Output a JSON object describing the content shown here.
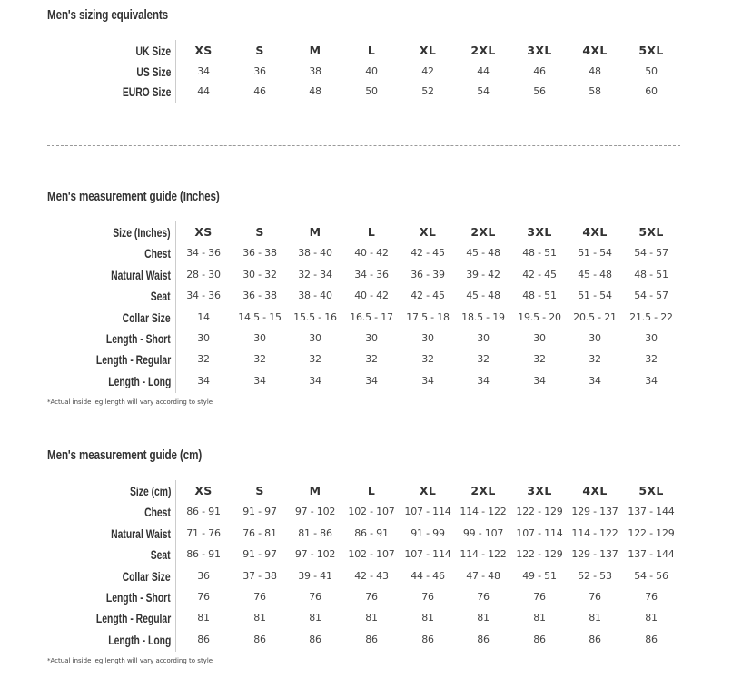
{
  "sizing": {
    "title": "Men's sizing equivalents",
    "rows": [
      {
        "label": "UK Size",
        "header": true,
        "values": [
          "XS",
          "S",
          "M",
          "L",
          "XL",
          "2XL",
          "3XL",
          "4XL",
          "5XL"
        ]
      },
      {
        "label": "US Size",
        "values": [
          "34",
          "36",
          "38",
          "40",
          "42",
          "44",
          "46",
          "48",
          "50"
        ]
      },
      {
        "label": "EURO Size",
        "values": [
          "44",
          "46",
          "48",
          "50",
          "52",
          "54",
          "56",
          "58",
          "60"
        ]
      }
    ]
  },
  "inches": {
    "title": "Men's measurement guide (Inches)",
    "note": "*Actual inside leg length will vary according to style",
    "rows": [
      {
        "label": "Size (Inches)",
        "header": true,
        "values": [
          "XS",
          "S",
          "M",
          "L",
          "XL",
          "2XL",
          "3XL",
          "4XL",
          "5XL"
        ]
      },
      {
        "label": "Chest",
        "values": [
          "34 - 36",
          "36 - 38",
          "38 - 40",
          "40 - 42",
          "42 - 45",
          "45 - 48",
          "48 - 51",
          "51 - 54",
          "54 - 57"
        ]
      },
      {
        "label": "Natural Waist",
        "values": [
          "28 - 30",
          "30 - 32",
          "32 - 34",
          "34 - 36",
          "36 - 39",
          "39 - 42",
          "42 - 45",
          "45 - 48",
          "48 - 51"
        ]
      },
      {
        "label": "Seat",
        "values": [
          "34 - 36",
          "36 - 38",
          "38 - 40",
          "40 - 42",
          "42 - 45",
          "45 - 48",
          "48 - 51",
          "51 - 54",
          "54 - 57"
        ]
      },
      {
        "label": "Collar Size",
        "values": [
          "14",
          "14.5 - 15",
          "15.5 - 16",
          "16.5 - 17",
          "17.5 - 18",
          "18.5 - 19",
          "19.5 - 20",
          "20.5 - 21",
          "21.5 - 22"
        ]
      },
      {
        "label": "Length - Short",
        "values": [
          "30",
          "30",
          "30",
          "30",
          "30",
          "30",
          "30",
          "30",
          "30"
        ]
      },
      {
        "label": "Length - Regular",
        "values": [
          "32",
          "32",
          "32",
          "32",
          "32",
          "32",
          "32",
          "32",
          "32"
        ]
      },
      {
        "label": "Length - Long",
        "values": [
          "34",
          "34",
          "34",
          "34",
          "34",
          "34",
          "34",
          "34",
          "34"
        ]
      }
    ]
  },
  "cm": {
    "title": "Men's measurement guide (cm)",
    "note": "*Actual inside leg length will vary according to style",
    "rows": [
      {
        "label": "Size (cm)",
        "header": true,
        "values": [
          "XS",
          "S",
          "M",
          "L",
          "XL",
          "2XL",
          "3XL",
          "4XL",
          "5XL"
        ]
      },
      {
        "label": "Chest",
        "values": [
          "86 - 91",
          "91 - 97",
          "97 - 102",
          "102 - 107",
          "107 - 114",
          "114 - 122",
          "122 - 129",
          "129 - 137",
          "137 - 144"
        ]
      },
      {
        "label": "Natural Waist",
        "values": [
          "71 - 76",
          "76 - 81",
          "81 - 86",
          "86 - 91",
          "91 - 99",
          "99 - 107",
          "107 - 114",
          "114 - 122",
          "122 - 129"
        ]
      },
      {
        "label": "Seat",
        "values": [
          "86 - 91",
          "91 - 97",
          "97 - 102",
          "102 - 107",
          "107 - 114",
          "114 - 122",
          "122 - 129",
          "129 - 137",
          "137 - 144"
        ]
      },
      {
        "label": "Collar Size",
        "values": [
          "36",
          "37 - 38",
          "39 - 41",
          "42 - 43",
          "44 - 46",
          "47 - 48",
          "49 - 51",
          "52 - 53",
          "54 - 56"
        ]
      },
      {
        "label": "Length - Short",
        "values": [
          "76",
          "76",
          "76",
          "76",
          "76",
          "76",
          "76",
          "76",
          "76"
        ]
      },
      {
        "label": "Length - Regular",
        "values": [
          "81",
          "81",
          "81",
          "81",
          "81",
          "81",
          "81",
          "81",
          "81"
        ]
      },
      {
        "label": "Length - Long",
        "values": [
          "86",
          "86",
          "86",
          "86",
          "86",
          "86",
          "86",
          "86",
          "86"
        ]
      }
    ]
  }
}
